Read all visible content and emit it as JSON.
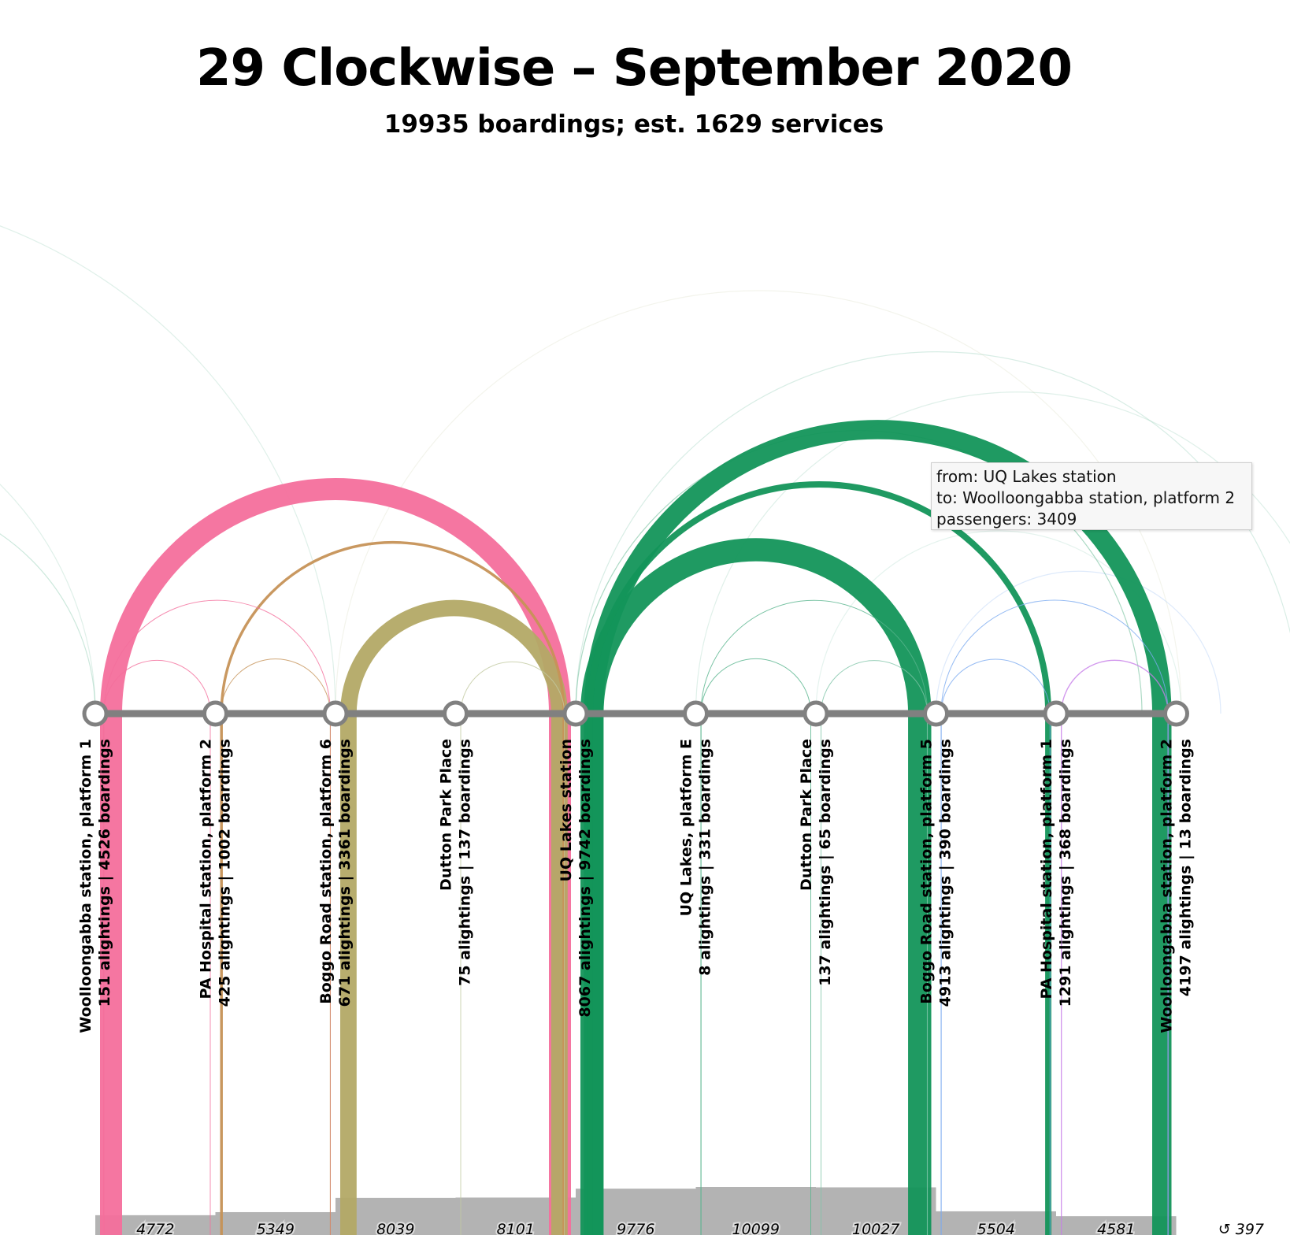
{
  "title": "29 Clockwise – September 2020",
  "subtitle": "19935 boardings; est. 1629 services",
  "tooltip": {
    "from": "from: UQ Lakes station",
    "to": "to: Woolloongabba station, platform 2",
    "passengers": "passengers: 3409"
  },
  "chart_data": {
    "type": "arc",
    "stops": [
      {
        "name": "Woolloongabba station, platform 1",
        "stats": "151 alightings | 4526 boardings",
        "alightings": 151,
        "boardings": 4526,
        "color": "#f46f9c"
      },
      {
        "name": "PA Hospital station, platform 2",
        "stats": "425 alightings | 1002 boardings",
        "alightings": 425,
        "boardings": 1002,
        "color": "#c69257"
      },
      {
        "name": "Boggo Road station, platform 6",
        "stats": "671 alightings | 3361 boardings",
        "alightings": 671,
        "boardings": 3361,
        "color": "#b3a966"
      },
      {
        "name": "Dutton Park Place",
        "stats": "75 alightings | 137 boardings",
        "alightings": 75,
        "boardings": 137,
        "color": "#c2c9a0"
      },
      {
        "name": "UQ Lakes station",
        "stats": "8067 alightings | 9742 boardings",
        "alightings": 8067,
        "boardings": 9742,
        "color": "#13955a"
      },
      {
        "name": "UQ Lakes, platform E",
        "stats": "8 alightings | 331 boardings",
        "alightings": 8,
        "boardings": 331,
        "color": "#56b48c"
      },
      {
        "name": "Dutton Park Place",
        "stats": "137 alightings | 65 boardings",
        "alightings": 137,
        "boardings": 65,
        "color": "#7fc4a8"
      },
      {
        "name": "Boggo Road station, platform 5",
        "stats": "4913 alightings | 390 boardings",
        "alightings": 4913,
        "boardings": 390,
        "color": "#7aaaf0"
      },
      {
        "name": "PA Hospital station, platform 1",
        "stats": "1291 alightings | 368 boardings",
        "alightings": 1291,
        "boardings": 368,
        "color": "#c77ee8"
      },
      {
        "name": "Woolloongabba station, platform 2",
        "stats": "4197 alightings | 13 boardings",
        "alightings": 4197,
        "boardings": 13,
        "color": "#13955a"
      }
    ],
    "loads": [
      4772,
      5349,
      8039,
      8101,
      9776,
      10099,
      10027,
      5504,
      4581
    ],
    "loop_load": "↺ 397",
    "flows": [
      {
        "from": 0,
        "to": 4,
        "passengers": 3900
      },
      {
        "from": 0,
        "to": 1,
        "passengers": 80
      },
      {
        "from": 0,
        "to": 2,
        "passengers": 20
      },
      {
        "from": 1,
        "to": 4,
        "passengers": 480
      },
      {
        "from": 1,
        "to": 2,
        "passengers": 20
      },
      {
        "from": 2,
        "to": 4,
        "passengers": 2900
      },
      {
        "from": 3,
        "to": 4,
        "passengers": 30
      },
      {
        "from": 4,
        "to": 9,
        "passengers": 3409
      },
      {
        "from": 4,
        "to": 8,
        "passengers": 1100
      },
      {
        "from": 4,
        "to": 7,
        "passengers": 4100
      },
      {
        "from": 5,
        "to": 7,
        "passengers": 40
      },
      {
        "from": 5,
        "to": 6,
        "passengers": 20
      },
      {
        "from": 6,
        "to": 7,
        "passengers": 10
      },
      {
        "from": 7,
        "to": 9,
        "passengers": 60
      },
      {
        "from": 7,
        "to": 8,
        "passengers": 15
      },
      {
        "from": 8,
        "to": 9,
        "passengers": 190
      }
    ]
  }
}
